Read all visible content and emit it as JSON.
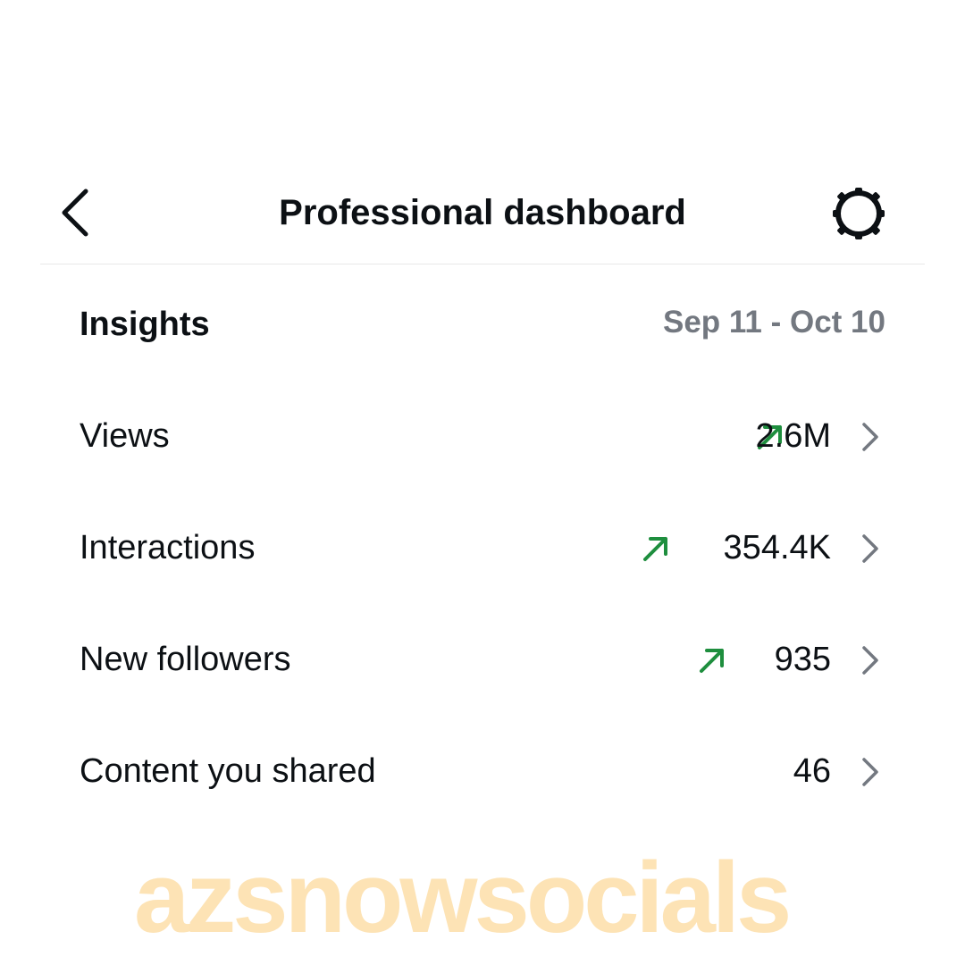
{
  "header": {
    "title": "Professional dashboard",
    "back_icon": "chevron-left-icon",
    "settings_icon": "gear-icon"
  },
  "insights": {
    "heading": "Insights",
    "date_range": "Sep 11 - Oct 10",
    "rows": [
      {
        "label": "Views",
        "value": "2.6M",
        "trend": "up"
      },
      {
        "label": "Interactions",
        "value": "354.4K",
        "trend": "up"
      },
      {
        "label": "New followers",
        "value": "935",
        "trend": "up"
      },
      {
        "label": "Content you shared",
        "value": "46",
        "trend": "none"
      }
    ]
  },
  "watermark": "azsnowsocials",
  "colors": {
    "trend_up": "#1e8e3e",
    "muted": "#737880",
    "watermark": "#fbd79a"
  }
}
